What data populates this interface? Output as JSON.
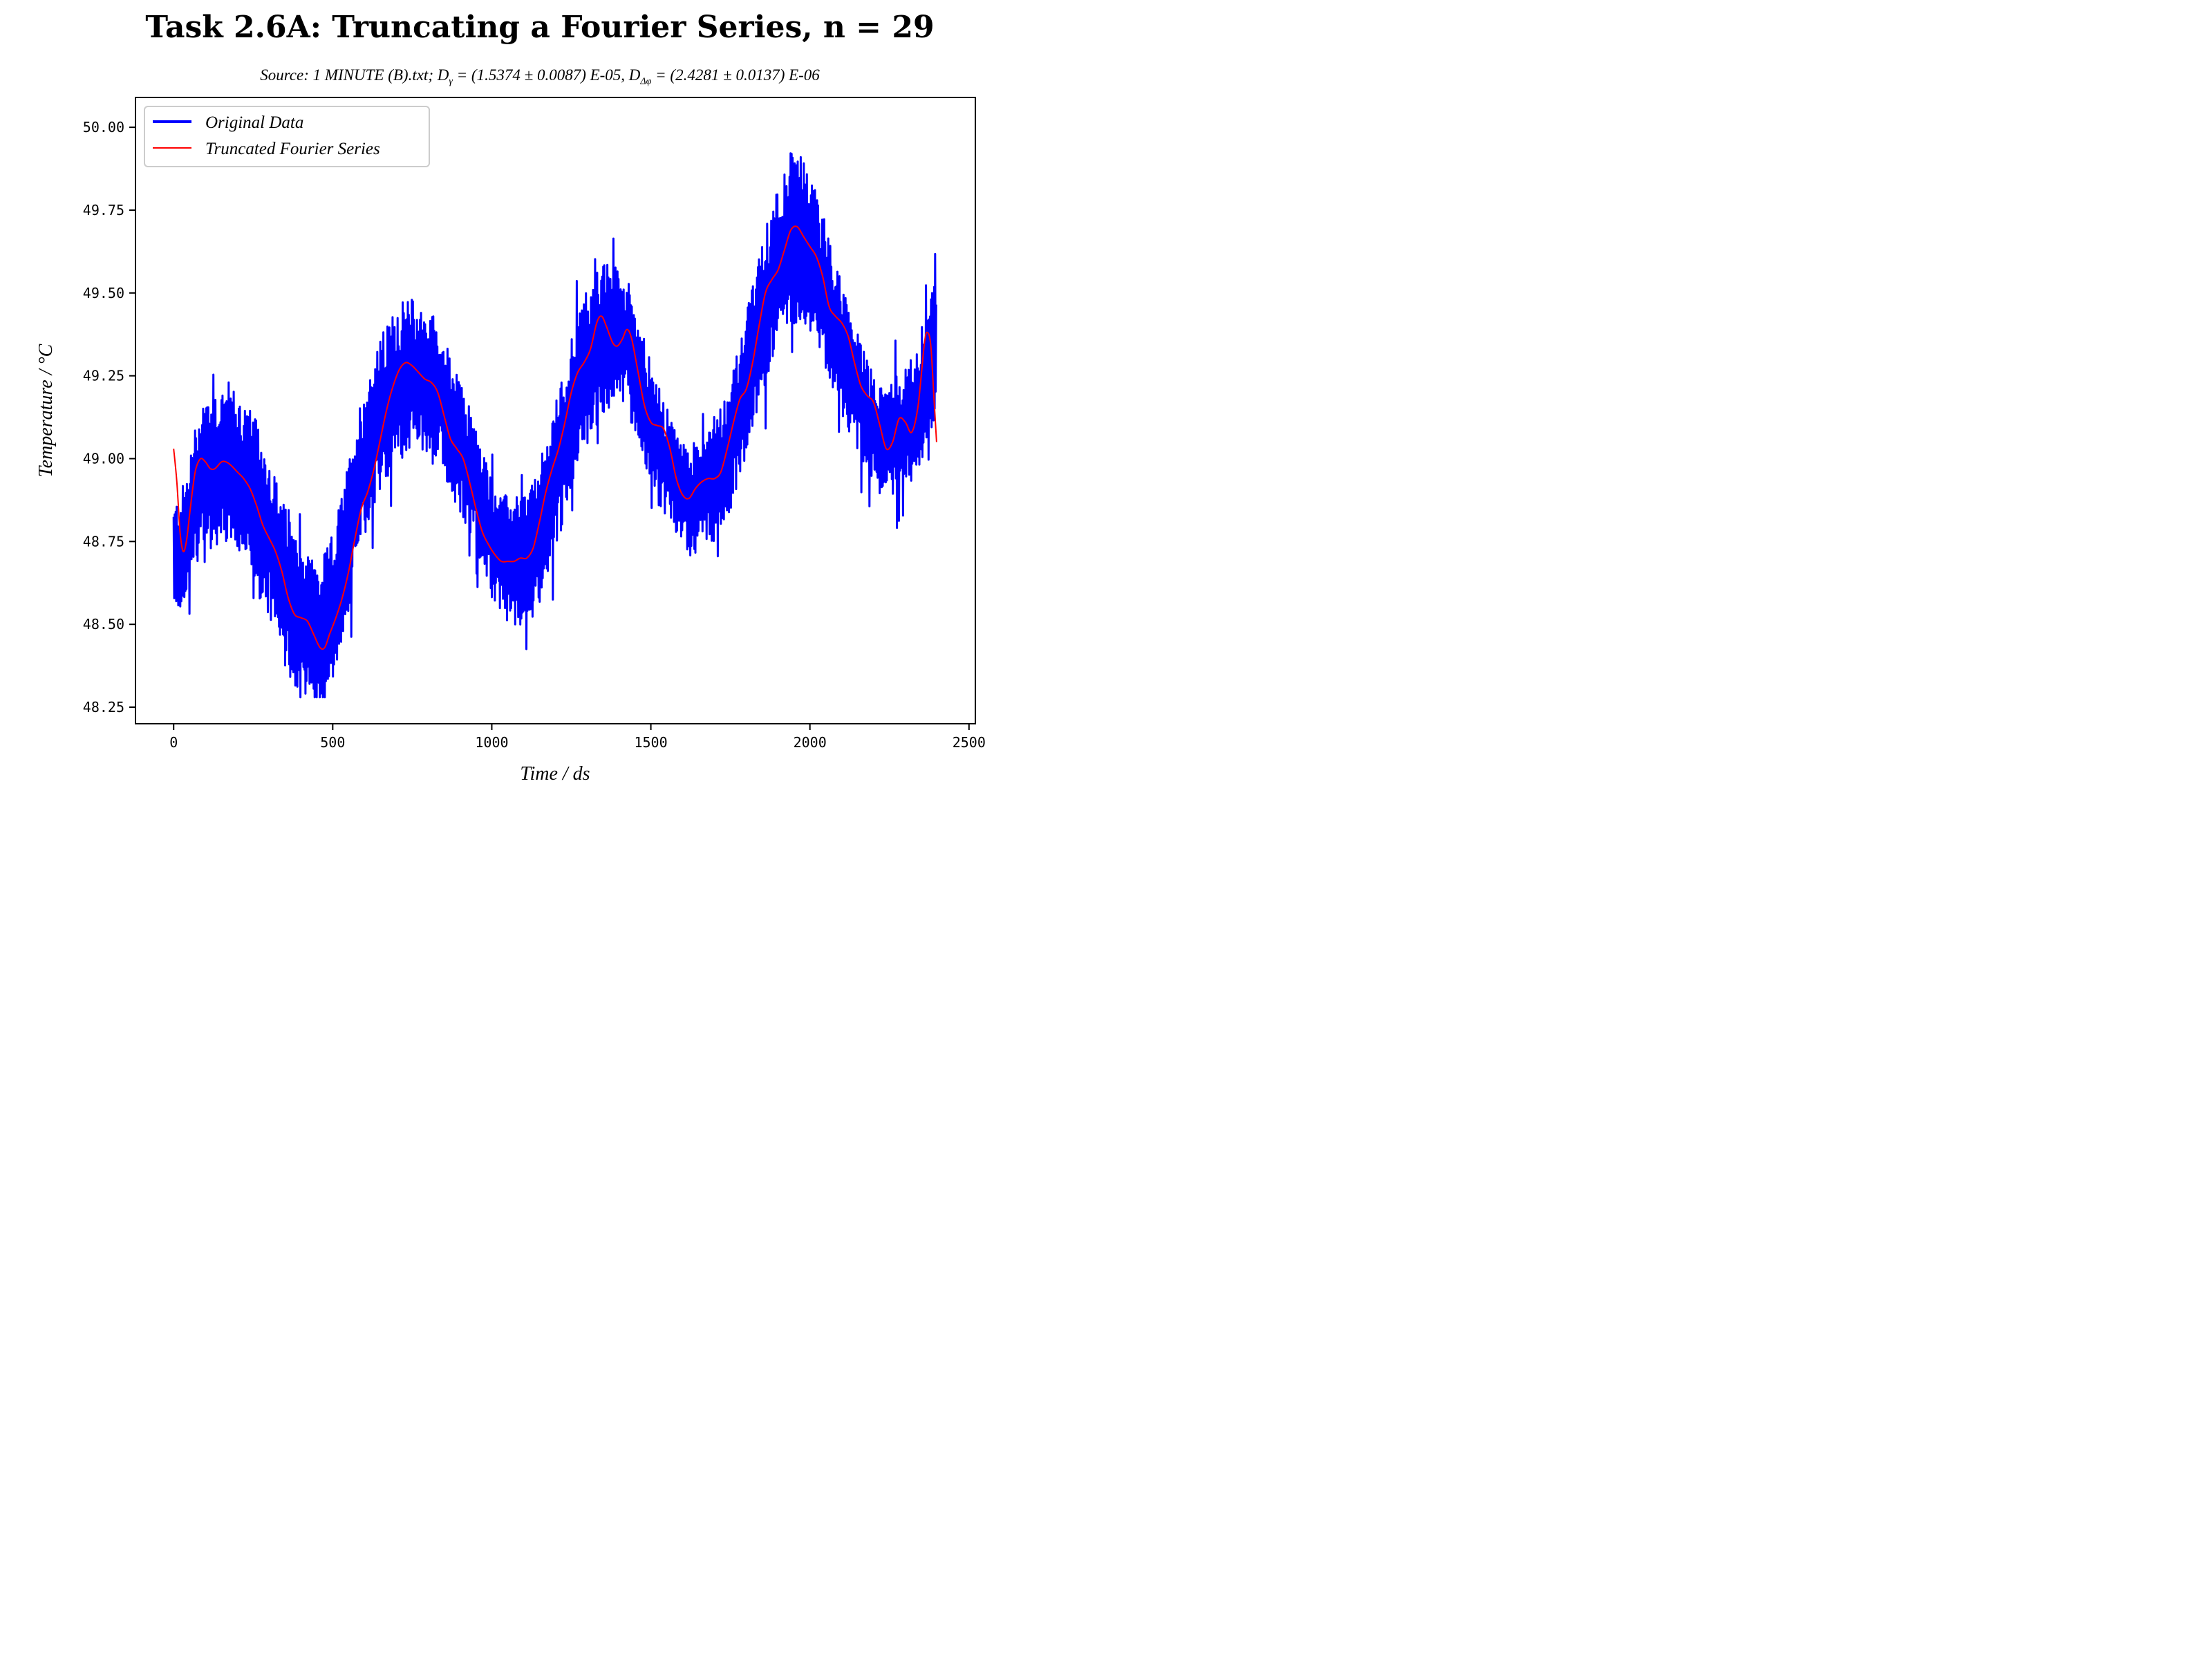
{
  "chart_data": {
    "type": "line",
    "title": "Task 2.6A: Truncating a Fourier Series, n = 29",
    "subtitle": {
      "prefix": "Source: 1 MINUTE (B).txt; D",
      "sub1": "γ",
      "mid": " = (1.5374 ± 0.0087) E-05, D",
      "sub2": "Δφ",
      "suffix": " = (2.4281 ± 0.0137) E-06"
    },
    "xlabel": "Time / ds",
    "ylabel": "Temperature / °C",
    "xlim": [
      -120,
      2520
    ],
    "ylim": [
      48.2,
      50.09
    ],
    "xticks": [
      0,
      500,
      1000,
      1500,
      2000,
      2500
    ],
    "xtick_labels": [
      "0",
      "500",
      "1000",
      "1500",
      "2000",
      "2500"
    ],
    "yticks": [
      48.25,
      48.5,
      48.75,
      49.0,
      49.25,
      49.5,
      49.75,
      50.0
    ],
    "ytick_labels": [
      "48.25",
      "48.50",
      "48.75",
      "49.00",
      "49.25",
      "49.50",
      "49.75",
      "50.00"
    ],
    "grid": false,
    "legend_position": "top-left",
    "series": [
      {
        "name": "Original Data",
        "color": "#0000ff",
        "style": "dense oscillating band",
        "center": [
          [
            0,
            48.7
          ],
          [
            20,
            48.72
          ],
          [
            40,
            48.76
          ],
          [
            60,
            48.86
          ],
          [
            90,
            48.96
          ],
          [
            130,
            48.97
          ],
          [
            170,
            48.99
          ],
          [
            220,
            48.93
          ],
          [
            260,
            48.86
          ],
          [
            300,
            48.76
          ],
          [
            340,
            48.63
          ],
          [
            380,
            48.55
          ],
          [
            420,
            48.5
          ],
          [
            460,
            48.46
          ],
          [
            500,
            48.55
          ],
          [
            540,
            48.72
          ],
          [
            580,
            48.92
          ],
          [
            620,
            49.05
          ],
          [
            660,
            49.15
          ],
          [
            700,
            49.22
          ],
          [
            740,
            49.26
          ],
          [
            780,
            49.24
          ],
          [
            820,
            49.22
          ],
          [
            860,
            49.13
          ],
          [
            900,
            49.03
          ],
          [
            940,
            48.95
          ],
          [
            980,
            48.82
          ],
          [
            1020,
            48.72
          ],
          [
            1060,
            48.69
          ],
          [
            1100,
            48.7
          ],
          [
            1140,
            48.74
          ],
          [
            1180,
            48.88
          ],
          [
            1220,
            49.02
          ],
          [
            1260,
            49.18
          ],
          [
            1300,
            49.28
          ],
          [
            1340,
            49.36
          ],
          [
            1380,
            49.37
          ],
          [
            1420,
            49.36
          ],
          [
            1460,
            49.25
          ],
          [
            1500,
            49.1
          ],
          [
            1540,
            49.0
          ],
          [
            1580,
            48.92
          ],
          [
            1620,
            48.87
          ],
          [
            1660,
            48.9
          ],
          [
            1700,
            48.94
          ],
          [
            1740,
            49.01
          ],
          [
            1780,
            49.14
          ],
          [
            1820,
            49.3
          ],
          [
            1860,
            49.46
          ],
          [
            1900,
            49.6
          ],
          [
            1940,
            49.67
          ],
          [
            1980,
            49.66
          ],
          [
            2020,
            49.58
          ],
          [
            2060,
            49.46
          ],
          [
            2100,
            49.33
          ],
          [
            2140,
            49.23
          ],
          [
            2180,
            49.13
          ],
          [
            2220,
            49.06
          ],
          [
            2260,
            49.07
          ],
          [
            2300,
            49.08
          ],
          [
            2340,
            49.15
          ],
          [
            2380,
            49.3
          ],
          [
            2398,
            49.35
          ]
        ],
        "amplitude": [
          [
            0,
            0.16
          ],
          [
            100,
            0.24
          ],
          [
            300,
            0.26
          ],
          [
            450,
            0.22
          ],
          [
            700,
            0.24
          ],
          [
            1000,
            0.18
          ],
          [
            1300,
            0.24
          ],
          [
            1600,
            0.16
          ],
          [
            1950,
            0.26
          ],
          [
            2200,
            0.16
          ],
          [
            2400,
            0.22
          ]
        ],
        "range": [
          48.28,
          50.01
        ]
      },
      {
        "name": "Truncated Fourier Series",
        "color": "#ff0000",
        "style": "thin line",
        "points": [
          [
            0,
            49.03
          ],
          [
            10,
            48.93
          ],
          [
            20,
            48.78
          ],
          [
            30,
            48.72
          ],
          [
            40,
            48.75
          ],
          [
            50,
            48.83
          ],
          [
            60,
            48.91
          ],
          [
            70,
            48.97
          ],
          [
            85,
            49.0
          ],
          [
            100,
            48.99
          ],
          [
            115,
            48.97
          ],
          [
            130,
            48.97
          ],
          [
            150,
            48.99
          ],
          [
            165,
            48.99
          ],
          [
            180,
            48.98
          ],
          [
            200,
            48.96
          ],
          [
            220,
            48.94
          ],
          [
            240,
            48.91
          ],
          [
            260,
            48.86
          ],
          [
            280,
            48.8
          ],
          [
            300,
            48.76
          ],
          [
            320,
            48.72
          ],
          [
            340,
            48.66
          ],
          [
            360,
            48.58
          ],
          [
            380,
            48.53
          ],
          [
            400,
            48.52
          ],
          [
            420,
            48.51
          ],
          [
            440,
            48.47
          ],
          [
            460,
            48.43
          ],
          [
            475,
            48.43
          ],
          [
            490,
            48.47
          ],
          [
            510,
            48.52
          ],
          [
            530,
            48.58
          ],
          [
            550,
            48.66
          ],
          [
            570,
            48.76
          ],
          [
            590,
            48.85
          ],
          [
            610,
            48.9
          ],
          [
            630,
            48.97
          ],
          [
            650,
            49.06
          ],
          [
            670,
            49.15
          ],
          [
            690,
            49.22
          ],
          [
            710,
            49.27
          ],
          [
            730,
            49.29
          ],
          [
            750,
            49.28
          ],
          [
            770,
            49.26
          ],
          [
            790,
            49.24
          ],
          [
            810,
            49.23
          ],
          [
            830,
            49.2
          ],
          [
            850,
            49.13
          ],
          [
            870,
            49.06
          ],
          [
            890,
            49.03
          ],
          [
            910,
            49.0
          ],
          [
            930,
            48.93
          ],
          [
            950,
            48.85
          ],
          [
            970,
            48.78
          ],
          [
            990,
            48.74
          ],
          [
            1010,
            48.71
          ],
          [
            1030,
            48.69
          ],
          [
            1050,
            48.69
          ],
          [
            1070,
            48.69
          ],
          [
            1090,
            48.7
          ],
          [
            1110,
            48.7
          ],
          [
            1130,
            48.73
          ],
          [
            1150,
            48.81
          ],
          [
            1170,
            48.9
          ],
          [
            1190,
            48.97
          ],
          [
            1210,
            49.03
          ],
          [
            1230,
            49.11
          ],
          [
            1250,
            49.2
          ],
          [
            1270,
            49.26
          ],
          [
            1290,
            49.29
          ],
          [
            1310,
            49.33
          ],
          [
            1330,
            49.41
          ],
          [
            1345,
            49.43
          ],
          [
            1360,
            49.4
          ],
          [
            1380,
            49.35
          ],
          [
            1395,
            49.34
          ],
          [
            1410,
            49.36
          ],
          [
            1425,
            49.39
          ],
          [
            1440,
            49.36
          ],
          [
            1460,
            49.26
          ],
          [
            1480,
            49.16
          ],
          [
            1500,
            49.11
          ],
          [
            1520,
            49.1
          ],
          [
            1540,
            49.09
          ],
          [
            1560,
            49.03
          ],
          [
            1580,
            48.94
          ],
          [
            1600,
            48.89
          ],
          [
            1620,
            48.88
          ],
          [
            1640,
            48.91
          ],
          [
            1660,
            48.93
          ],
          [
            1680,
            48.94
          ],
          [
            1700,
            48.94
          ],
          [
            1720,
            48.96
          ],
          [
            1740,
            49.03
          ],
          [
            1760,
            49.11
          ],
          [
            1780,
            49.18
          ],
          [
            1800,
            49.21
          ],
          [
            1820,
            49.29
          ],
          [
            1840,
            49.4
          ],
          [
            1860,
            49.5
          ],
          [
            1880,
            49.54
          ],
          [
            1900,
            49.57
          ],
          [
            1920,
            49.63
          ],
          [
            1940,
            49.69
          ],
          [
            1960,
            49.7
          ],
          [
            1980,
            49.67
          ],
          [
            2000,
            49.64
          ],
          [
            2020,
            49.61
          ],
          [
            2040,
            49.55
          ],
          [
            2060,
            49.46
          ],
          [
            2080,
            49.43
          ],
          [
            2100,
            49.41
          ],
          [
            2120,
            49.37
          ],
          [
            2140,
            49.29
          ],
          [
            2160,
            49.22
          ],
          [
            2180,
            49.19
          ],
          [
            2200,
            49.17
          ],
          [
            2220,
            49.1
          ],
          [
            2240,
            49.03
          ],
          [
            2260,
            49.05
          ],
          [
            2280,
            49.12
          ],
          [
            2300,
            49.11
          ],
          [
            2320,
            49.08
          ],
          [
            2340,
            49.16
          ],
          [
            2360,
            49.35
          ],
          [
            2370,
            49.38
          ],
          [
            2380,
            49.34
          ],
          [
            2390,
            49.18
          ],
          [
            2398,
            49.05
          ]
        ]
      }
    ]
  }
}
